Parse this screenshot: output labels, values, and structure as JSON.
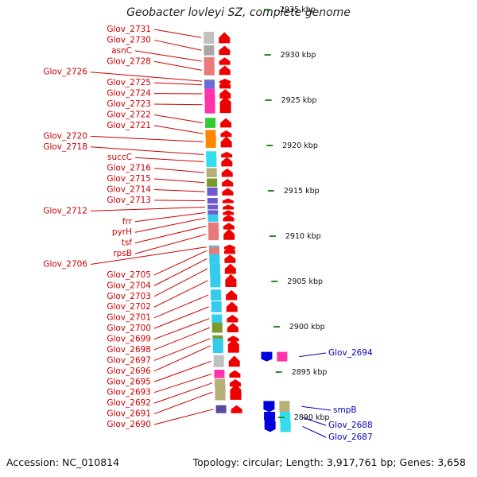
{
  "title": "Geobacter lovleyi SZ, complete genome",
  "accession": "Accession: NC_010814",
  "summary": "Topology: circular; Length: 3,917,761 bp; Genes: 3,658",
  "colors": {
    "tick": "#2a8a2a",
    "left_label": "#cc0000",
    "right_label": "#0000bb",
    "arrow_red": "#ee0000",
    "arrow_blue": "#0000dd"
  },
  "scale": {
    "unit": "kbp",
    "ticks": [
      {
        "label": "2935 kbp",
        "kbp": 2935
      },
      {
        "label": "2930 kbp",
        "kbp": 2930
      },
      {
        "label": "2925 kbp",
        "kbp": 2925
      },
      {
        "label": "2920 kbp",
        "kbp": 2920
      },
      {
        "label": "2915 kbp",
        "kbp": 2915
      },
      {
        "label": "2910 kbp",
        "kbp": 2910
      },
      {
        "label": "2905 kbp",
        "kbp": 2905
      },
      {
        "label": "2900 kbp",
        "kbp": 2900
      },
      {
        "label": "2895 kbp",
        "kbp": 2895
      },
      {
        "label": "2890 kbp",
        "kbp": 2890
      }
    ]
  },
  "left_genes": [
    {
      "label": "Glov_2731",
      "kbp": 2931.9,
      "fill": "#c0c0c0"
    },
    {
      "label": "Glov_2730",
      "kbp": 2930.5,
      "fill": "#a8a8a8"
    },
    {
      "label": "asnC",
      "kbp": 2929.3,
      "fill": "#e87a7a"
    },
    {
      "label": "Glov_2728",
      "kbp": 2928.3,
      "fill": "#e87a7a"
    },
    {
      "label": "Glov_2726",
      "kbp": 2927.1,
      "fill": "#808080"
    },
    {
      "label": "Glov_2725",
      "kbp": 2926.7,
      "fill": "#6a6adc"
    },
    {
      "label": "Glov_2724",
      "kbp": 2925.7,
      "fill": "#ff33aa"
    },
    {
      "label": "Glov_2723",
      "kbp": 2924.5,
      "fill": "#ff33aa"
    },
    {
      "label": "Glov_2722",
      "kbp": 2922.5,
      "fill": "#33cc33"
    },
    {
      "label": "Glov_2721",
      "kbp": 2921.3,
      "fill": "#ff8800"
    },
    {
      "label": "Glov_2720",
      "kbp": 2920.4,
      "fill": "#ff8800"
    },
    {
      "label": "Glov_2718",
      "kbp": 2919.0,
      "fill": "#33ddee"
    },
    {
      "label": "succC",
      "kbp": 2918.2,
      "fill": "#33ddee"
    },
    {
      "label": "Glov_2716",
      "kbp": 2917.0,
      "fill": "#b5b077"
    },
    {
      "label": "Glov_2715",
      "kbp": 2915.9,
      "fill": "#7a9a2a"
    },
    {
      "label": "Glov_2714",
      "kbp": 2914.9,
      "fill": "#6a5acd"
    },
    {
      "label": "Glov_2713",
      "kbp": 2913.9,
      "fill": "#6a5acd"
    },
    {
      "label": "Glov_2712",
      "kbp": 2913.2,
      "fill": "#6a5acd"
    },
    {
      "label": "frr",
      "kbp": 2912.6,
      "fill": "#6a5acd"
    },
    {
      "label": "pyrH",
      "kbp": 2912.0,
      "fill": "#33ccee"
    },
    {
      "label": "tsf",
      "kbp": 2911.1,
      "fill": "#e87a7a"
    },
    {
      "label": "rpsB",
      "kbp": 2910.2,
      "fill": "#e87a7a"
    },
    {
      "label": "Glov_2706",
      "kbp": 2908.8,
      "fill": "#33ccee"
    },
    {
      "label": "Glov_2705",
      "kbp": 2908.4,
      "fill": "#e87a7a"
    },
    {
      "label": "Glov_2704",
      "kbp": 2907.5,
      "fill": "#33ccee"
    },
    {
      "label": "Glov_2703",
      "kbp": 2906.4,
      "fill": "#33ccee"
    },
    {
      "label": "Glov_2702",
      "kbp": 2905.1,
      "fill": "#33ccee"
    },
    {
      "label": "Glov_2701",
      "kbp": 2903.5,
      "fill": "#33ccee"
    },
    {
      "label": "Glov_2700",
      "kbp": 2902.2,
      "fill": "#33ccee"
    },
    {
      "label": "Glov_2699",
      "kbp": 2900.9,
      "fill": "#33ccee"
    },
    {
      "label": "Glov_2698",
      "kbp": 2899.9,
      "fill": "#7a9a2a"
    },
    {
      "label": "Glov_2697",
      "kbp": 2898.7,
      "fill": "#7a9a2a"
    },
    {
      "label": "Glov_2696",
      "kbp": 2897.9,
      "fill": "#33ccee"
    },
    {
      "label": "Glov_2695",
      "kbp": 2896.2,
      "fill": "#c0c0c0"
    },
    {
      "label": "Glov_2693",
      "kbp": 2894.8,
      "fill": "#ff33aa"
    },
    {
      "label": "Glov_2692",
      "kbp": 2893.8,
      "fill": "#b5b077"
    },
    {
      "label": "Glov_2691",
      "kbp": 2892.8,
      "fill": "#b5b077"
    },
    {
      "label": "Glov_2690",
      "kbp": 2890.9,
      "fill": "#5a4a9a"
    }
  ],
  "right_genes": [
    {
      "label": "Glov_2694",
      "kbp": 2896.7
    },
    {
      "label": "smpB",
      "kbp": 2891.2
    },
    {
      "label": "Glov_2688",
      "kbp": 2890.0
    },
    {
      "label": "Glov_2687",
      "kbp": 2889.0
    }
  ]
}
